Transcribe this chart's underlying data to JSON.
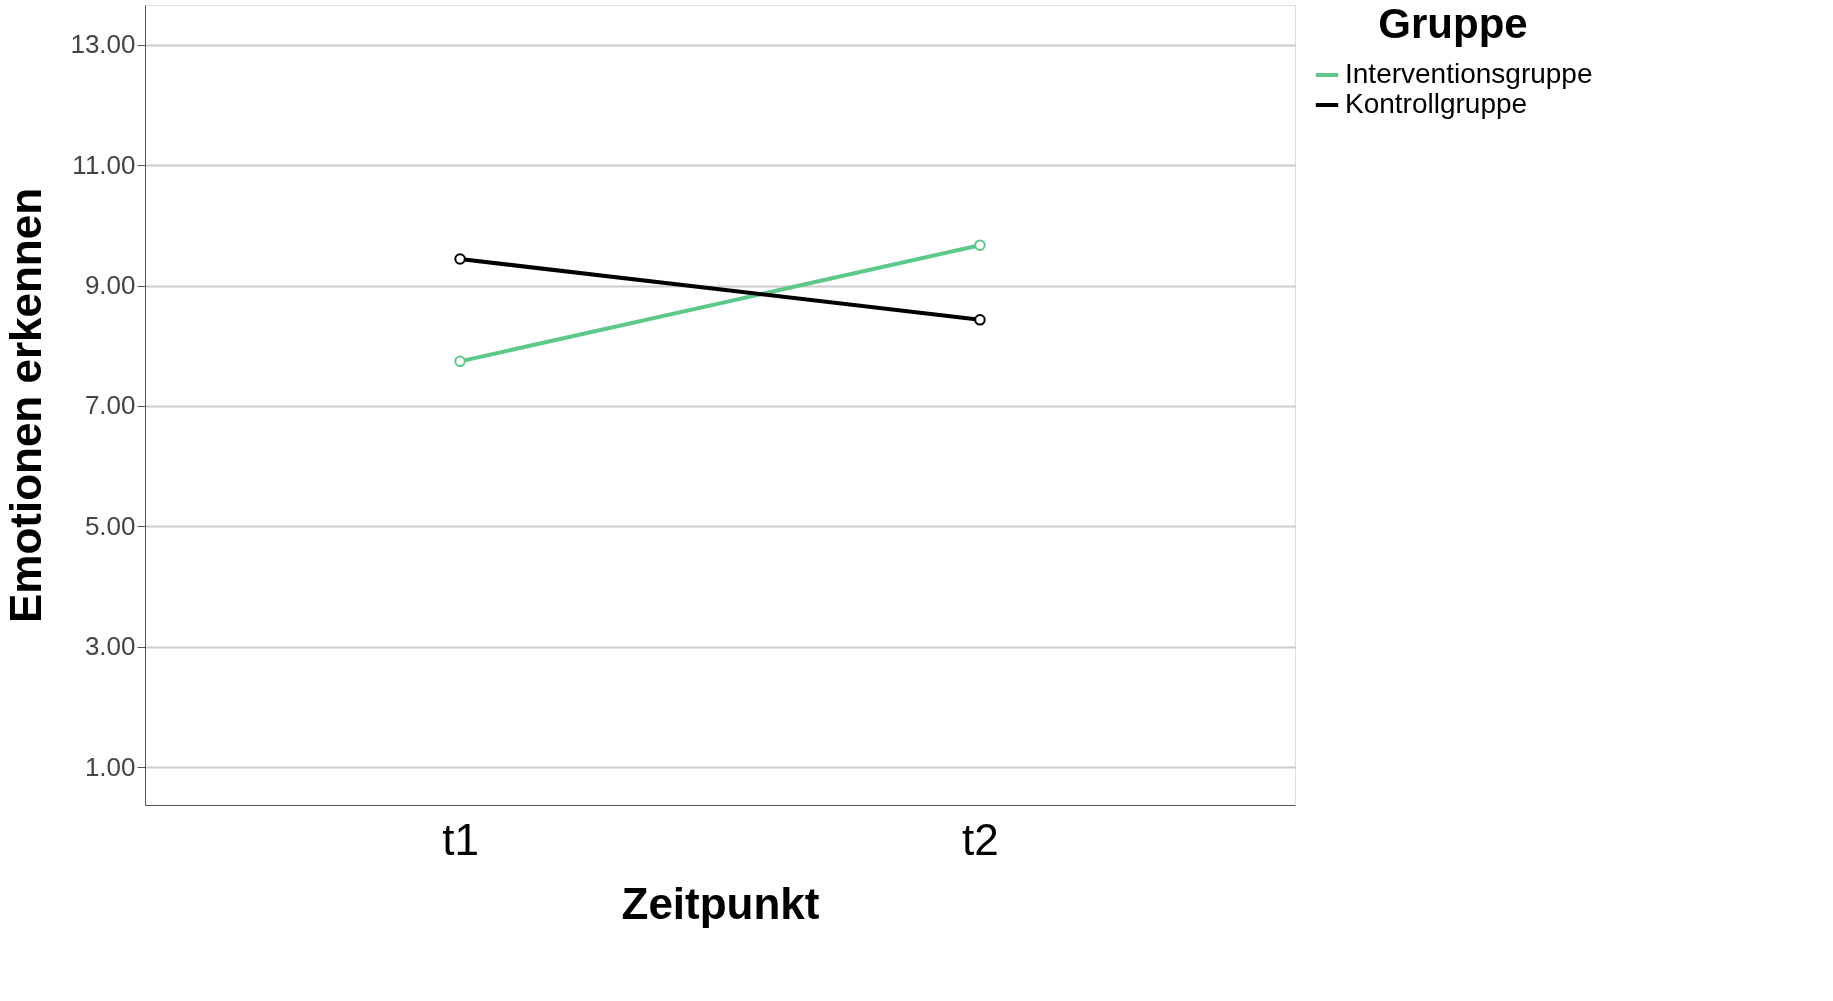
{
  "chart_data": {
    "type": "line",
    "xlabel": "Zeitpunkt",
    "ylabel": "Emotionen erkennen",
    "legend_title": "Gruppe",
    "categories": [
      "t1",
      "t2"
    ],
    "series": [
      {
        "name": "Interventionsgruppe",
        "color": "#5cc88a",
        "values": [
          7.74,
          9.67
        ]
      },
      {
        "name": "Kontrollgruppe",
        "color": "#000000",
        "values": [
          9.44,
          8.43
        ]
      }
    ],
    "ylim": [
      0.37,
      13.66
    ],
    "yticks": [
      {
        "value": 1,
        "label": "1.00"
      },
      {
        "value": 3,
        "label": "3.00"
      },
      {
        "value": 5,
        "label": "5.00"
      },
      {
        "value": 7,
        "label": "7.00"
      },
      {
        "value": 9,
        "label": "9.00"
      },
      {
        "value": 11,
        "label": "11.00"
      },
      {
        "value": 13,
        "label": "13.00"
      }
    ],
    "grid": "y",
    "legend": "top right",
    "marker": "circle",
    "line_style": "solid"
  }
}
